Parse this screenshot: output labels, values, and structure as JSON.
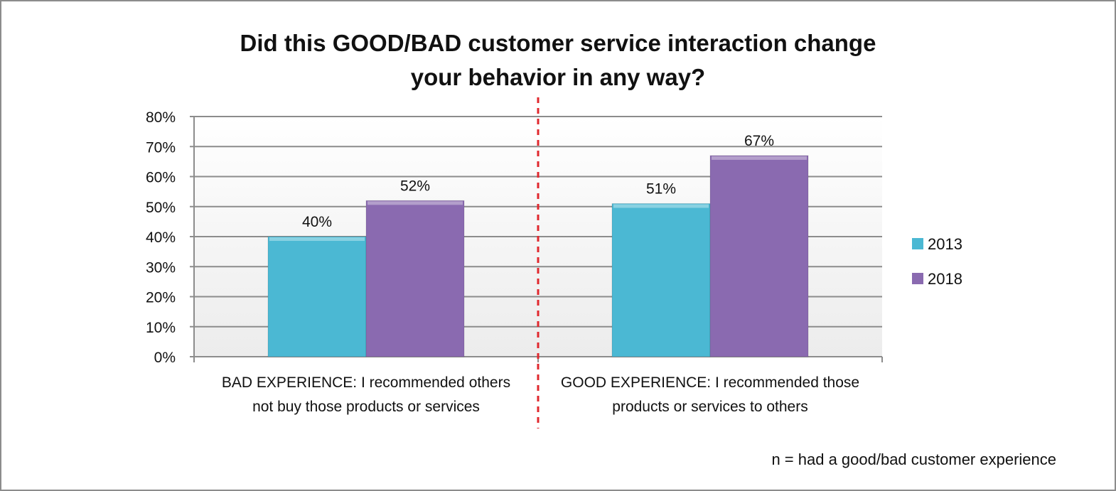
{
  "chart_data": {
    "type": "bar",
    "title_lines": [
      "Did this GOOD/BAD customer service interaction change",
      "your behavior in any way?"
    ],
    "categories": [
      [
        "BAD EXPERIENCE: I recommended others",
        "not buy those products or services"
      ],
      [
        "GOOD EXPERIENCE: I recommended those",
        "products or services to others"
      ]
    ],
    "series": [
      {
        "name": "2013",
        "values": [
          40,
          51
        ],
        "labels": [
          "40%",
          "51%"
        ],
        "color": "#4bb8d3"
      },
      {
        "name": "2018",
        "values": [
          52,
          67
        ],
        "labels": [
          "52%",
          "67%"
        ],
        "color": "#8a6ab0"
      }
    ],
    "ylim": [
      0,
      80
    ],
    "yticks": [
      "0%",
      "10%",
      "20%",
      "30%",
      "40%",
      "50%",
      "60%",
      "70%",
      "80%"
    ],
    "ytick_values": [
      0,
      10,
      20,
      30,
      40,
      50,
      60,
      70,
      80
    ],
    "grid": true,
    "legend_position": "right",
    "divider_color": "#e0282e",
    "note": "n = had a good/bad customer experience"
  }
}
